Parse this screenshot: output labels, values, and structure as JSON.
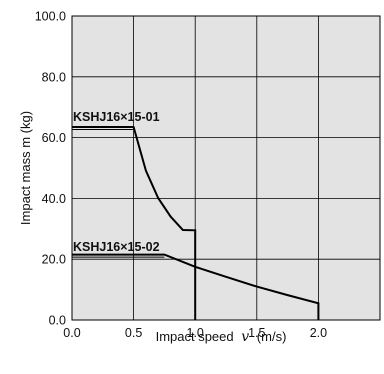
{
  "chart_data": {
    "type": "line",
    "xlabel": {
      "prefix": "Impact speed",
      "symbol": "v",
      "unit": "(m/s)"
    },
    "ylabel": "Impact mass  m (kg)",
    "xlim": [
      0,
      2.5
    ],
    "ylim": [
      0,
      100
    ],
    "x_ticks": [
      "0.0",
      "0.5",
      "1.0",
      "1.5",
      "2.0"
    ],
    "x_tick_values": [
      0,
      0.5,
      1.0,
      1.5,
      2.0
    ],
    "y_ticks": [
      "0.0",
      "20.0",
      "40.0",
      "60.0",
      "80.0",
      "100.0"
    ],
    "y_tick_values": [
      0,
      20,
      40,
      60,
      80,
      100
    ],
    "grid": true,
    "background_color": "#e3e3e3",
    "line_color": "#000000",
    "series": [
      {
        "name": "KSHJ16×15-01",
        "points": [
          [
            0,
            63.5
          ],
          [
            0.5,
            63.5
          ],
          [
            0.6,
            49.1
          ],
          [
            0.7,
            40.1
          ],
          [
            0.8,
            34.0
          ],
          [
            0.9,
            29.6
          ],
          [
            1.0,
            29.5
          ],
          [
            1.0,
            0
          ]
        ]
      },
      {
        "name": "KSHJ16×15-02",
        "points": [
          [
            0,
            21.5
          ],
          [
            0.75,
            21.5
          ],
          [
            1.0,
            17.5
          ],
          [
            1.25,
            14.2
          ],
          [
            1.5,
            11.0
          ],
          [
            1.75,
            8.2
          ],
          [
            2.0,
            5.5
          ],
          [
            2.0,
            0
          ]
        ]
      }
    ]
  }
}
